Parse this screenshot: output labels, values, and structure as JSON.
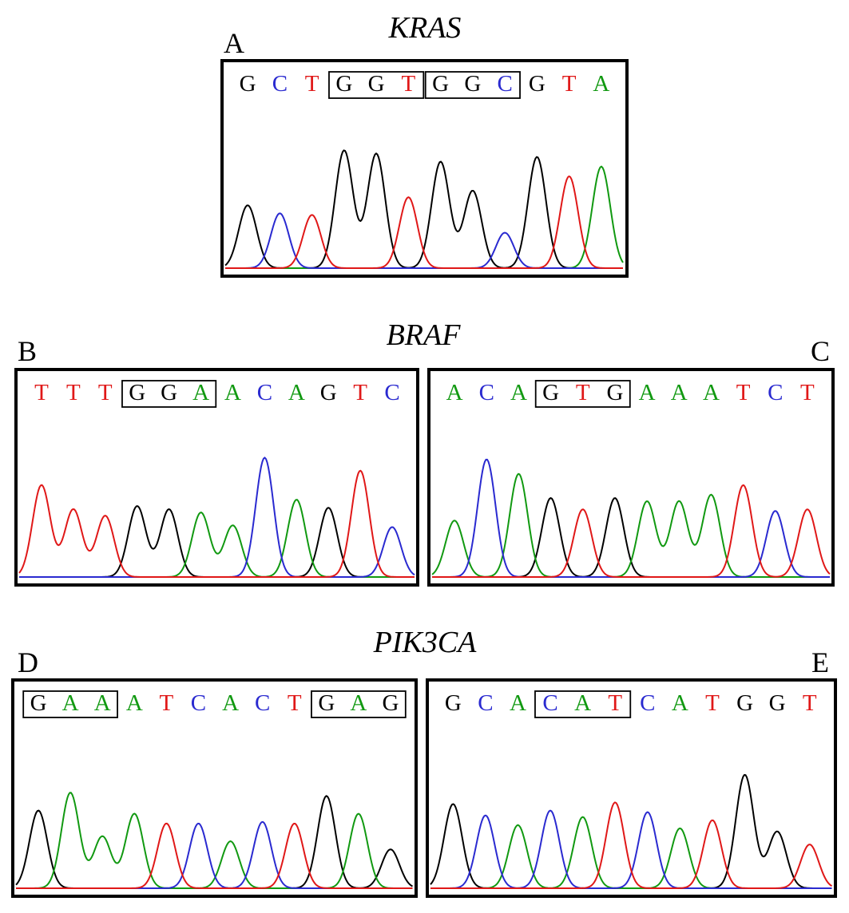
{
  "titles": {
    "kras": "KRAS",
    "braf": "BRAF",
    "pik3ca": "PIK3CA"
  },
  "colors": {
    "G": "#000000",
    "C": "#2a2ad0",
    "T": "#e01818",
    "A": "#119911"
  },
  "panels": [
    {
      "id": "A",
      "label": "A",
      "bases": [
        "G",
        "C",
        "T",
        "G",
        "G",
        "T",
        "G",
        "G",
        "C",
        "G",
        "T",
        "A"
      ],
      "boxes": [
        [
          3,
          5
        ],
        [
          6,
          8
        ]
      ],
      "peak_heights": [
        0.39,
        0.34,
        0.33,
        0.73,
        0.71,
        0.44,
        0.66,
        0.48,
        0.22,
        0.69,
        0.57,
        0.63
      ]
    },
    {
      "id": "B",
      "label": "B",
      "bases": [
        "T",
        "T",
        "T",
        "G",
        "G",
        "A",
        "A",
        "C",
        "A",
        "G",
        "T",
        "C"
      ],
      "boxes": [
        [
          3,
          5
        ]
      ],
      "peak_heights": [
        0.57,
        0.42,
        0.38,
        0.44,
        0.42,
        0.4,
        0.32,
        0.74,
        0.48,
        0.43,
        0.66,
        0.31
      ]
    },
    {
      "id": "C",
      "label": "C",
      "bases": [
        "A",
        "C",
        "A",
        "G",
        "T",
        "G",
        "A",
        "A",
        "A",
        "T",
        "C",
        "T"
      ],
      "boxes": [
        [
          3,
          5
        ]
      ],
      "peak_heights": [
        0.35,
        0.73,
        0.64,
        0.49,
        0.42,
        0.49,
        0.47,
        0.47,
        0.51,
        0.57,
        0.41,
        0.42
      ]
    },
    {
      "id": "D",
      "label": "D",
      "bases": [
        "G",
        "A",
        "A",
        "A",
        "T",
        "C",
        "A",
        "C",
        "T",
        "G",
        "A",
        "G"
      ],
      "boxes": [
        [
          0,
          2
        ],
        [
          9,
          11
        ]
      ],
      "peak_heights": [
        0.48,
        0.59,
        0.32,
        0.46,
        0.4,
        0.4,
        0.29,
        0.41,
        0.4,
        0.57,
        0.46,
        0.24
      ]
    },
    {
      "id": "E",
      "label": "E",
      "bases": [
        "G",
        "C",
        "A",
        "C",
        "A",
        "T",
        "C",
        "A",
        "T",
        "G",
        "G",
        "T"
      ],
      "boxes": [
        [
          3,
          5
        ]
      ],
      "peak_heights": [
        0.52,
        0.45,
        0.39,
        0.48,
        0.44,
        0.53,
        0.47,
        0.37,
        0.42,
        0.7,
        0.35,
        0.27
      ]
    }
  ]
}
